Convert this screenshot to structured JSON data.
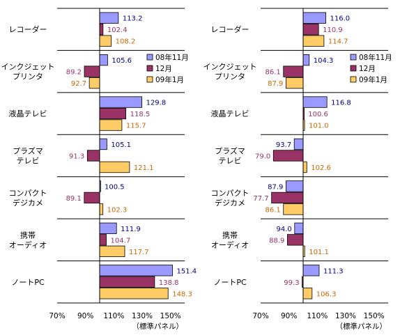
{
  "legend": [
    {
      "label": "08年11月",
      "color": "#9999ff",
      "text_color": "#000080"
    },
    {
      "label": "12月",
      "color": "#993366",
      "text_color": "#993366"
    },
    {
      "label": "09年1月",
      "color": "#ffcc66",
      "text_color": "#cc6600"
    }
  ],
  "chart_data": [
    {
      "type": "bar",
      "orientation": "horizontal",
      "categories": [
        "レコーダー",
        "インクジェット\nプリンタ",
        "液晶テレビ",
        "プラズマ\nテレビ",
        "コンパクト\nデジカメ",
        "携帯\nオーディオ",
        "ノートPC"
      ],
      "series": [
        {
          "name": "08年11月",
          "values": [
            113.2,
            105.6,
            129.8,
            105.1,
            100.5,
            111.9,
            151.4
          ]
        },
        {
          "name": "12月",
          "values": [
            102.4,
            89.2,
            118.5,
            91.3,
            89.1,
            104.7,
            138.8
          ]
        },
        {
          "name": "09年1月",
          "values": [
            108.2,
            92.7,
            115.7,
            121.1,
            102.3,
            117.7,
            148.3
          ]
        }
      ],
      "baseline": 100,
      "xlim": [
        70,
        160
      ],
      "xticks": [
        "70%",
        "90%",
        "110%",
        "130%",
        "150%"
      ],
      "xticks_values": [
        70,
        90,
        110,
        130,
        150
      ],
      "xlabel": "（標準パネル）",
      "legend_position": "right"
    },
    {
      "type": "bar",
      "orientation": "horizontal",
      "categories": [
        "レコーダー",
        "インクジェット\nプリンタ",
        "液晶テレビ",
        "プラズマ\nテレビ",
        "コンパクト\nデジカメ",
        "携帯\nオーディオ",
        "ノートPC"
      ],
      "series": [
        {
          "name": "08年11月",
          "values": [
            116.0,
            104.3,
            116.8,
            93.7,
            87.9,
            94.0,
            111.3
          ]
        },
        {
          "name": "12月",
          "values": [
            110.9,
            86.1,
            100.6,
            79.0,
            77.7,
            88.9,
            99.3
          ]
        },
        {
          "name": "09年1月",
          "values": [
            114.7,
            87.9,
            101.0,
            102.6,
            86.1,
            101.1,
            106.3
          ]
        }
      ],
      "baseline": 100,
      "xlim": [
        70,
        160
      ],
      "xticks": [
        "70%",
        "90%",
        "110%",
        "130%",
        "150%"
      ],
      "xticks_values": [
        70,
        90,
        110,
        130,
        150
      ],
      "xlabel": "（標準パネル）",
      "legend_position": "right"
    }
  ]
}
